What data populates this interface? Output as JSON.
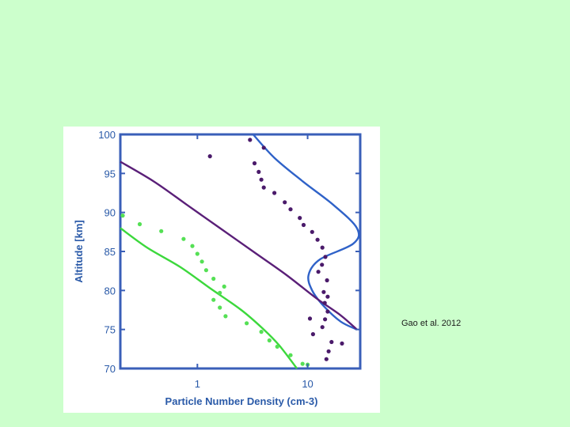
{
  "citation": "Gao et al. 2012",
  "chart_data": {
    "type": "line",
    "xlabel": "Particle Number Density (cm-3)",
    "ylabel": "Altitude [km]",
    "xscale": "log",
    "xlim": [
      0.2,
      30
    ],
    "ylim": [
      70,
      100
    ],
    "x_ticks": [
      1,
      10
    ],
    "x_tick_labels": [
      "1",
      "10"
    ],
    "y_ticks": [
      70,
      75,
      80,
      85,
      90,
      95,
      100
    ],
    "y_tick_labels": [
      "70",
      "75",
      "80",
      "85",
      "90",
      "95",
      "100"
    ],
    "grid": false,
    "legend": "none",
    "colors": {
      "axes": "#3a5fb8",
      "blue": "#2f62c8",
      "purple": "#5a1f78",
      "green": "#3cd83c",
      "dots_purple": "#4a1a6a",
      "dots_green": "#55e055"
    },
    "series": [
      {
        "kind": "line",
        "color_key": "blue",
        "points": [
          [
            3.2,
            100
          ],
          [
            5,
            97
          ],
          [
            9,
            94
          ],
          [
            17,
            91
          ],
          [
            28,
            88
          ],
          [
            26,
            86
          ],
          [
            13,
            84
          ],
          [
            10.2,
            82
          ],
          [
            11,
            80
          ],
          [
            14,
            78
          ],
          [
            20,
            76
          ],
          [
            28,
            75
          ]
        ]
      },
      {
        "kind": "line",
        "color_key": "purple",
        "points": [
          [
            0.2,
            96.5
          ],
          [
            0.4,
            94
          ],
          [
            0.8,
            91
          ],
          [
            1.6,
            88
          ],
          [
            3.2,
            85
          ],
          [
            6.4,
            82
          ],
          [
            12,
            79
          ],
          [
            20,
            76.8
          ],
          [
            28,
            75
          ]
        ]
      },
      {
        "kind": "line",
        "color_key": "green",
        "points": [
          [
            0.2,
            88
          ],
          [
            0.35,
            85.5
          ],
          [
            0.7,
            83
          ],
          [
            1.3,
            80.3
          ],
          [
            2.5,
            77.5
          ],
          [
            4,
            75
          ],
          [
            5.5,
            73
          ],
          [
            8,
            70
          ]
        ]
      },
      {
        "kind": "scatter",
        "color_key": "dots_purple",
        "points": [
          [
            1.3,
            97.2
          ],
          [
            3,
            99.3
          ],
          [
            4,
            98.3
          ],
          [
            3.3,
            96.3
          ],
          [
            3.6,
            95.2
          ],
          [
            3.8,
            94.2
          ],
          [
            4,
            93.2
          ],
          [
            5,
            92.5
          ],
          [
            6.2,
            91.3
          ],
          [
            7,
            90.4
          ],
          [
            8.5,
            89.3
          ],
          [
            9.2,
            88.4
          ],
          [
            11,
            87.5
          ],
          [
            12.3,
            86.5
          ],
          [
            13.6,
            85.5
          ],
          [
            14.5,
            84.3
          ],
          [
            13.5,
            83.3
          ],
          [
            12.5,
            82.4
          ],
          [
            15,
            81.3
          ],
          [
            14,
            79.8
          ],
          [
            15.2,
            79.2
          ],
          [
            14.3,
            78.4
          ],
          [
            15.2,
            77.3
          ],
          [
            14.4,
            76.3
          ],
          [
            10.5,
            76.4
          ],
          [
            13.6,
            75.3
          ],
          [
            11.2,
            74.4
          ],
          [
            16.5,
            73.4
          ],
          [
            20.5,
            73.2
          ],
          [
            15.5,
            72.2
          ],
          [
            14.8,
            71.2
          ]
        ]
      },
      {
        "kind": "scatter",
        "color_key": "dots_green",
        "points": [
          [
            0.21,
            89.6
          ],
          [
            0.3,
            88.5
          ],
          [
            0.47,
            87.6
          ],
          [
            0.75,
            86.6
          ],
          [
            0.9,
            85.7
          ],
          [
            1,
            84.7
          ],
          [
            1.1,
            83.7
          ],
          [
            1.2,
            82.6
          ],
          [
            1.4,
            81.5
          ],
          [
            1.75,
            80.5
          ],
          [
            1.6,
            79.7
          ],
          [
            1.4,
            78.8
          ],
          [
            1.6,
            77.8
          ],
          [
            1.8,
            76.7
          ],
          [
            2.8,
            75.8
          ],
          [
            3.8,
            74.7
          ],
          [
            4.5,
            73.6
          ],
          [
            5.3,
            72.8
          ],
          [
            7,
            71.7
          ],
          [
            9,
            70.6
          ],
          [
            10,
            70.5
          ]
        ]
      }
    ]
  }
}
